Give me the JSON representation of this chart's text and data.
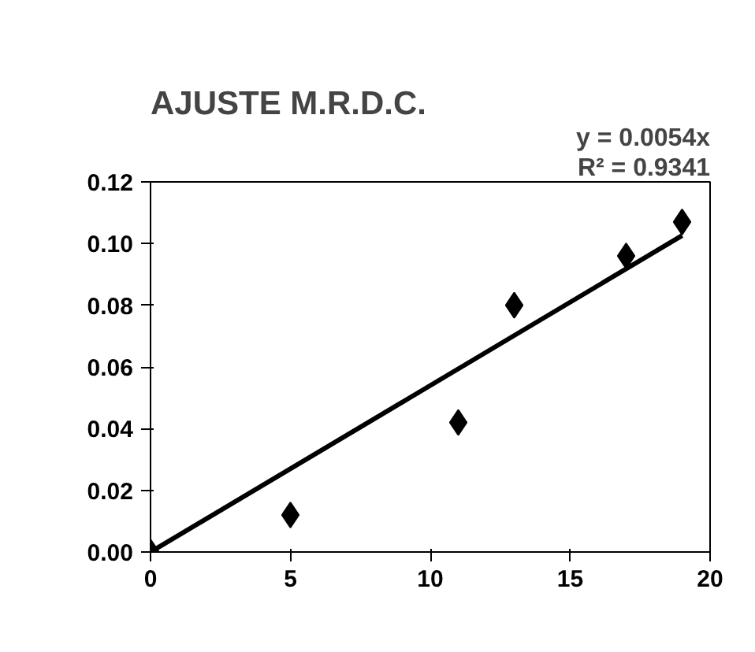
{
  "chart_data": {
    "type": "scatter",
    "title": "AJUSTE M.R.D.C.",
    "grid": false,
    "xlim": [
      0,
      20
    ],
    "xticks": [
      0,
      5,
      10,
      15,
      20
    ],
    "ylim": [
      0,
      0.12
    ],
    "yticks": [
      {
        "value": 0,
        "label": "0.00"
      },
      {
        "value": 0.02,
        "label": "0.02"
      },
      {
        "value": 0.04,
        "label": "0.04"
      },
      {
        "value": 0.06,
        "label": "0.06"
      },
      {
        "value": 0.08,
        "label": "0.08"
      },
      {
        "value": 0.1,
        "label": "0.10"
      },
      {
        "value": 0.12,
        "label": "0.12"
      }
    ],
    "annotations": [
      "y = 0.0054x",
      "R² = 0.9341"
    ],
    "series": [
      {
        "marker": "diamond",
        "color": "#000000",
        "x": [
          0,
          5,
          11,
          13,
          17,
          19
        ],
        "values": [
          0,
          0.012,
          0.042,
          0.08,
          0.096,
          0.107
        ]
      },
      {
        "type": "line",
        "color": "#000000",
        "x": [
          0,
          19
        ],
        "values": [
          0,
          0.1026
        ]
      }
    ]
  }
}
